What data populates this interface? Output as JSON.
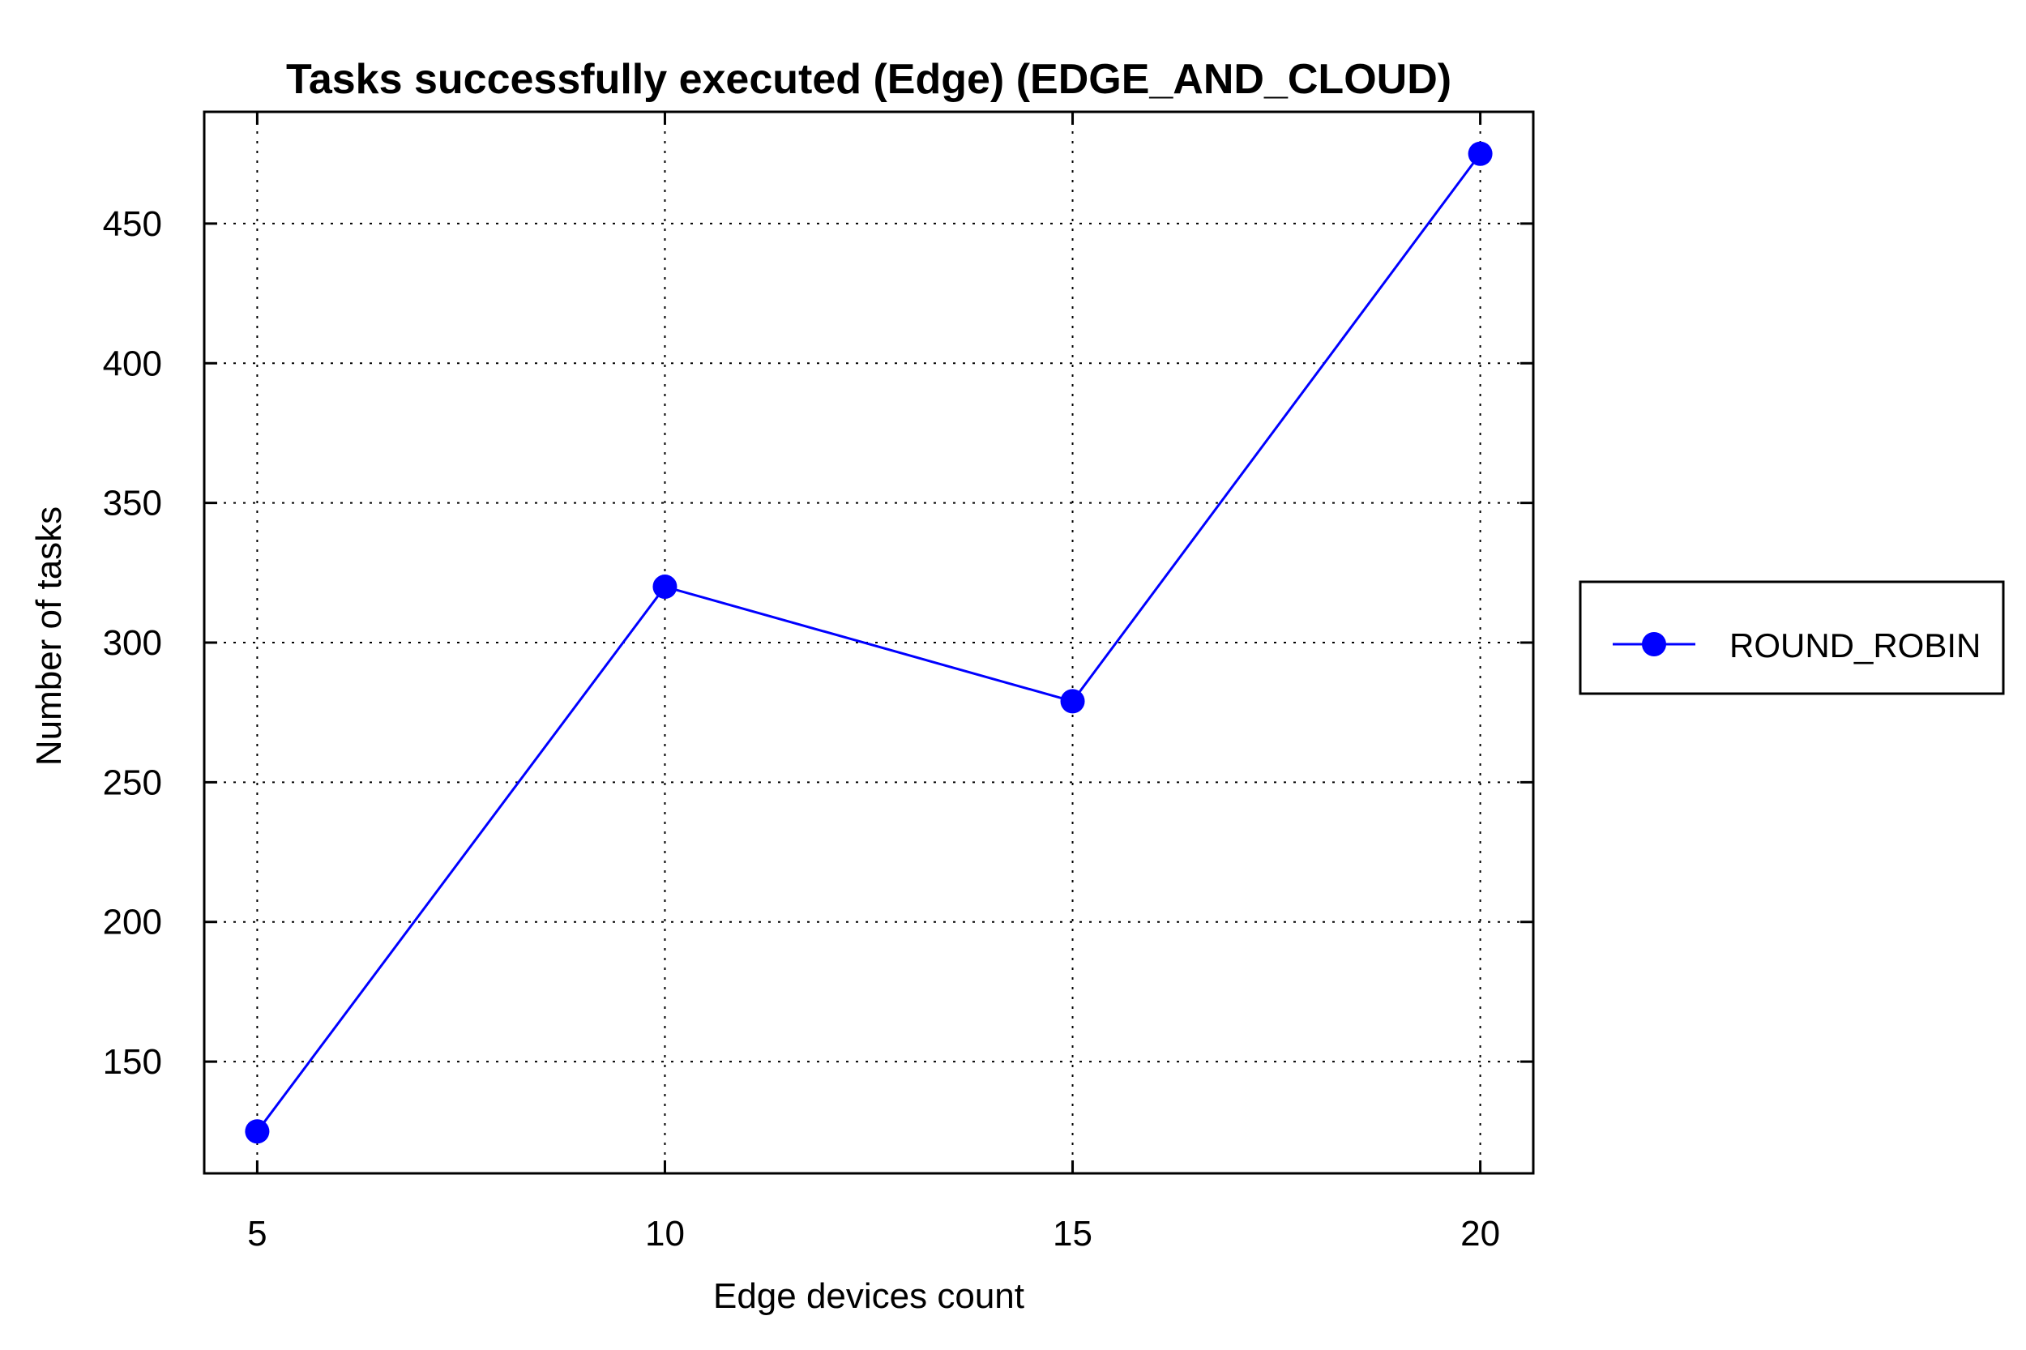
{
  "chart_data": {
    "type": "line",
    "title": "Tasks successfully executed (Edge) (EDGE_AND_CLOUD)",
    "xlabel": "Edge devices count",
    "ylabel": "Number of tasks",
    "x": [
      5,
      10,
      15,
      20
    ],
    "x_ticks": [
      "5",
      "10",
      "15",
      "20"
    ],
    "xlim": [
      4.35,
      20.65
    ],
    "y_ticks": [
      "150",
      "200",
      "250",
      "300",
      "350",
      "400",
      "450"
    ],
    "ylim": [
      110,
      490
    ],
    "grid": true,
    "legend_position": "right",
    "series": [
      {
        "name": "ROUND_ROBIN",
        "color": "#0000ff",
        "marker": "circle",
        "values": [
          125,
          320,
          279,
          475
        ]
      }
    ]
  }
}
